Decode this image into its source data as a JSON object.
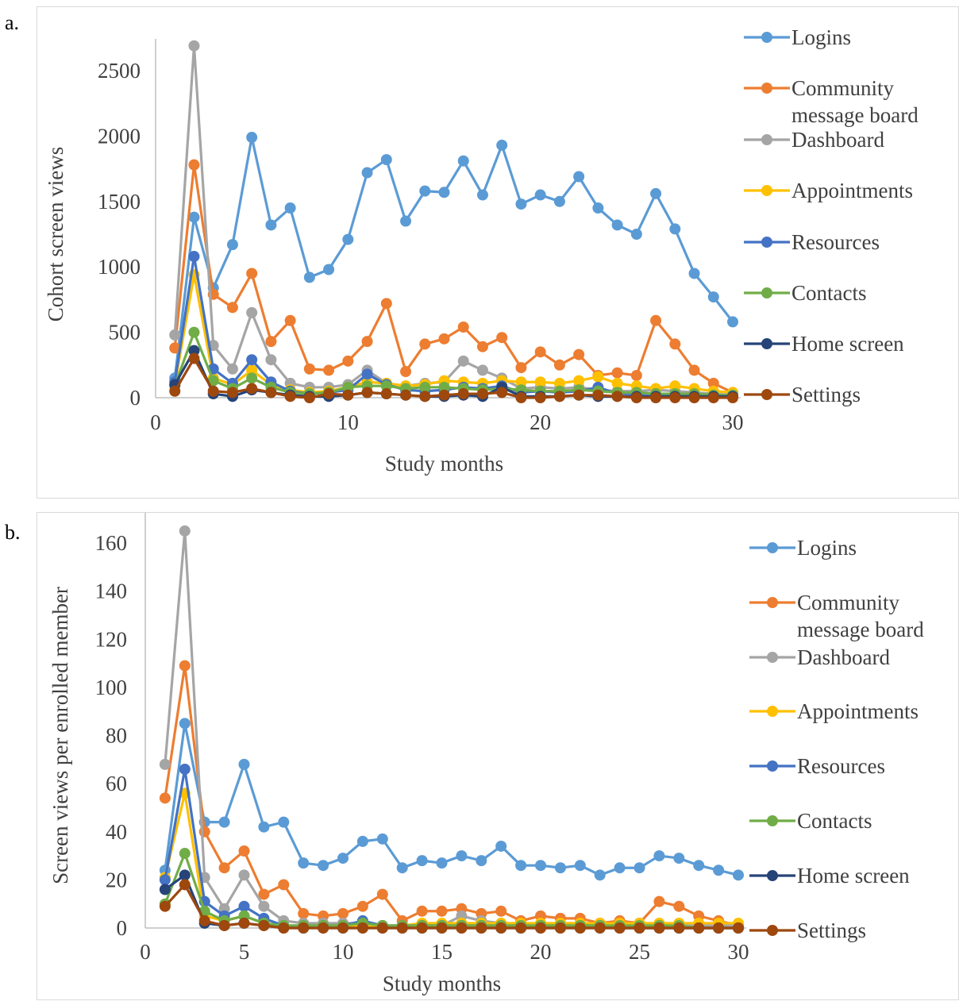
{
  "panels": [
    {
      "label": "a."
    },
    {
      "label": "b."
    }
  ],
  "colors": {
    "Logins": "#5b9bd5",
    "Community message board": "#ed7d31",
    "Dashboard": "#a5a5a5",
    "Appointments": "#ffc000",
    "Resources": "#4472c4",
    "Contacts": "#70ad47",
    "Home screen": "#264478",
    "Settings": "#9e480e",
    "axis": "#bfbfbf",
    "text": "#404040"
  },
  "chart_data": [
    {
      "type": "line",
      "title": "",
      "xlabel": "Study months",
      "ylabel": "Cohort screen views",
      "xlim": [
        0,
        30
      ],
      "ylim": [
        0,
        2500
      ],
      "xticks": [
        0,
        10,
        20,
        30
      ],
      "yticks": [
        0,
        500,
        1000,
        1500,
        2000,
        2500
      ],
      "grid": false,
      "legend_position": "right",
      "x": [
        1,
        2,
        3,
        4,
        5,
        6,
        7,
        8,
        9,
        10,
        11,
        12,
        13,
        14,
        15,
        16,
        17,
        18,
        19,
        20,
        21,
        22,
        23,
        24,
        25,
        26,
        27,
        28,
        29,
        30
      ],
      "series": [
        {
          "name": "Logins",
          "values": [
            150,
            1380,
            840,
            1170,
            1990,
            1320,
            1450,
            920,
            980,
            1210,
            1720,
            1820,
            1350,
            1580,
            1570,
            1810,
            1550,
            1930,
            1480,
            1550,
            1500,
            1690,
            1450,
            1320,
            1250,
            1560,
            1290,
            950,
            770,
            580
          ]
        },
        {
          "name": "Community message board",
          "values": [
            380,
            1780,
            790,
            690,
            950,
            430,
            590,
            220,
            210,
            280,
            430,
            720,
            200,
            410,
            450,
            540,
            390,
            460,
            230,
            350,
            250,
            330,
            170,
            190,
            170,
            590,
            410,
            210,
            110,
            40
          ]
        },
        {
          "name": "Dashboard",
          "values": [
            480,
            2690,
            400,
            220,
            650,
            290,
            110,
            80,
            80,
            100,
            210,
            110,
            90,
            110,
            120,
            280,
            210,
            150,
            70,
            80,
            70,
            80,
            60,
            50,
            50,
            60,
            50,
            40,
            30,
            20
          ]
        },
        {
          "name": "Appointments",
          "values": [
            100,
            940,
            150,
            100,
            210,
            100,
            60,
            40,
            50,
            80,
            120,
            110,
            90,
            100,
            130,
            120,
            110,
            130,
            120,
            120,
            110,
            130,
            160,
            110,
            90,
            70,
            90,
            70,
            50,
            40
          ]
        },
        {
          "name": "Resources",
          "values": [
            120,
            1080,
            220,
            110,
            290,
            120,
            50,
            30,
            40,
            60,
            180,
            100,
            60,
            50,
            60,
            80,
            70,
            90,
            40,
            50,
            40,
            50,
            80,
            30,
            30,
            30,
            20,
            20,
            10,
            10
          ]
        },
        {
          "name": "Contacts",
          "values": [
            90,
            500,
            130,
            70,
            150,
            80,
            40,
            30,
            40,
            80,
            90,
            90,
            70,
            80,
            80,
            70,
            60,
            70,
            60,
            50,
            50,
            60,
            50,
            40,
            40,
            30,
            30,
            30,
            20,
            20
          ]
        },
        {
          "name": "Home screen",
          "values": [
            100,
            360,
            30,
            10,
            60,
            40,
            20,
            10,
            10,
            20,
            40,
            30,
            20,
            10,
            10,
            20,
            10,
            80,
            10,
            10,
            10,
            20,
            10,
            10,
            10,
            10,
            10,
            10,
            10,
            10
          ]
        },
        {
          "name": "Settings",
          "values": [
            50,
            300,
            50,
            40,
            70,
            40,
            10,
            0,
            30,
            20,
            40,
            30,
            20,
            10,
            20,
            30,
            30,
            40,
            0,
            0,
            10,
            20,
            20,
            10,
            0,
            0,
            0,
            0,
            0,
            0
          ]
        }
      ]
    },
    {
      "type": "line",
      "title": "",
      "xlabel": "Study months",
      "ylabel": "Screen views per enrolled member",
      "xlim": [
        0,
        30
      ],
      "ylim": [
        0,
        160
      ],
      "xticks": [
        0,
        5,
        10,
        15,
        20,
        25,
        30
      ],
      "yticks": [
        0,
        20,
        40,
        60,
        80,
        100,
        120,
        140,
        160
      ],
      "grid": false,
      "legend_position": "right",
      "x": [
        1,
        2,
        3,
        4,
        5,
        6,
        7,
        8,
        9,
        10,
        11,
        12,
        13,
        14,
        15,
        16,
        17,
        18,
        19,
        20,
        21,
        22,
        23,
        24,
        25,
        26,
        27,
        28,
        29,
        30
      ],
      "series": [
        {
          "name": "Logins",
          "values": [
            24,
            85,
            44,
            44,
            68,
            42,
            44,
            27,
            26,
            29,
            36,
            37,
            25,
            28,
            27,
            30,
            28,
            34,
            26,
            26,
            25,
            26,
            22,
            25,
            25,
            30,
            29,
            26,
            24,
            22
          ]
        },
        {
          "name": "Community message board",
          "values": [
            54,
            109,
            40,
            25,
            32,
            14,
            18,
            6,
            5,
            6,
            9,
            14,
            3,
            7,
            7,
            8,
            6,
            7,
            3,
            5,
            4,
            4,
            2,
            3,
            2,
            11,
            9,
            5,
            3,
            1
          ]
        },
        {
          "name": "Dashboard",
          "values": [
            68,
            165,
            21,
            8,
            22,
            9,
            3,
            2,
            2,
            2,
            2,
            1,
            1,
            1,
            1,
            5,
            3,
            2,
            1,
            1,
            1,
            1,
            1,
            1,
            1,
            1,
            1,
            1,
            1,
            1
          ]
        },
        {
          "name": "Appointments",
          "values": [
            21,
            56,
            5,
            3,
            5,
            2,
            1,
            1,
            1,
            1,
            1,
            1,
            1,
            2,
            2,
            2,
            2,
            2,
            2,
            2,
            2,
            2,
            2,
            2,
            2,
            2,
            2,
            2,
            2,
            2
          ]
        },
        {
          "name": "Resources",
          "values": [
            20,
            66,
            11,
            5,
            9,
            4,
            1,
            1,
            1,
            1,
            3,
            1,
            1,
            1,
            1,
            1,
            1,
            1,
            1,
            1,
            1,
            1,
            1,
            0,
            0,
            0,
            0,
            0,
            0,
            0
          ]
        },
        {
          "name": "Contacts",
          "values": [
            10,
            31,
            7,
            3,
            5,
            2,
            1,
            1,
            1,
            1,
            2,
            1,
            1,
            1,
            1,
            1,
            1,
            1,
            1,
            1,
            1,
            1,
            1,
            1,
            1,
            1,
            1,
            0,
            0,
            0
          ]
        },
        {
          "name": "Home screen",
          "values": [
            16,
            22,
            2,
            1,
            2,
            1,
            0,
            0,
            0,
            0,
            0,
            0,
            0,
            0,
            0,
            0,
            0,
            0,
            0,
            0,
            0,
            0,
            0,
            0,
            0,
            0,
            0,
            0,
            0,
            0
          ]
        },
        {
          "name": "Settings",
          "values": [
            9,
            18,
            3,
            1,
            2,
            1,
            0,
            0,
            0,
            0,
            0,
            0,
            0,
            0,
            0,
            0,
            0,
            0,
            0,
            0,
            0,
            0,
            0,
            0,
            0,
            0,
            0,
            0,
            0,
            0
          ]
        }
      ]
    }
  ],
  "legend": {
    "items": [
      {
        "name": "Logins",
        "lines": [
          "Logins"
        ]
      },
      {
        "name": "Community message board",
        "lines": [
          "Community",
          "message board"
        ]
      },
      {
        "name": "Dashboard",
        "lines": [
          "Dashboard"
        ]
      },
      {
        "name": "Appointments",
        "lines": [
          "Appointments"
        ]
      },
      {
        "name": "Resources",
        "lines": [
          "Resources"
        ]
      },
      {
        "name": "Contacts",
        "lines": [
          "Contacts"
        ]
      },
      {
        "name": "Home screen",
        "lines": [
          "Home screen"
        ]
      },
      {
        "name": "Settings",
        "lines": [
          "Settings"
        ]
      }
    ]
  }
}
